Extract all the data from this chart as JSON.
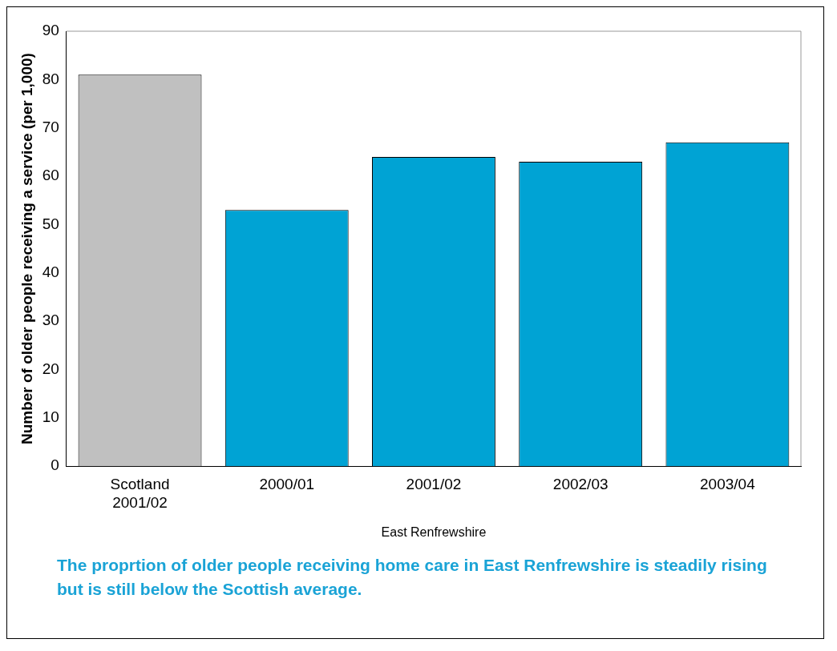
{
  "chart_data": {
    "type": "bar",
    "ylabel": "Number of older people receiving a service (per 1,000)",
    "xlabel": "East Renfrewshire",
    "categories": [
      "Scotland 2001/02",
      "2000/01",
      "2001/02",
      "2002/03",
      "2003/04"
    ],
    "values": [
      81,
      53,
      64,
      63,
      67
    ],
    "colors": [
      "#c0c0c0",
      "#00a3d4",
      "#00a3d4",
      "#00a3d4",
      "#00a3d4"
    ],
    "ylim": [
      0,
      90
    ],
    "yticks": [
      0,
      10,
      20,
      30,
      40,
      50,
      60,
      70,
      80,
      90
    ],
    "grid": false,
    "legend": false,
    "annotations": [
      "The proprtion of older people receiving home care in East Renfrewshire is steadily rising but is still below the Scottish average."
    ]
  }
}
